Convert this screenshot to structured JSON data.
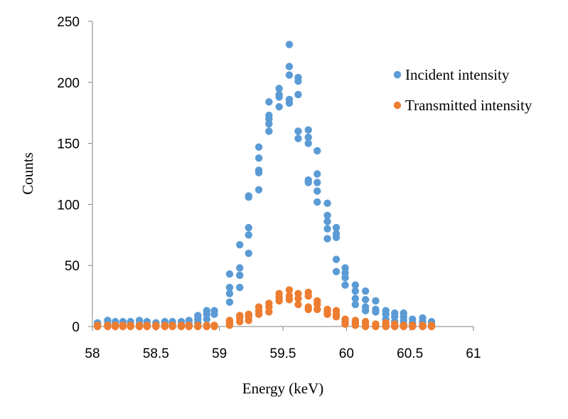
{
  "chart_data": {
    "type": "scatter",
    "xlabel": "Energy (keV)",
    "ylabel": "Counts",
    "xlim": [
      58,
      61
    ],
    "ylim": [
      0,
      250
    ],
    "xticks": [
      "58",
      "58.5",
      "59",
      "59.5",
      "60",
      "60.5",
      "61"
    ],
    "yticks": [
      "0",
      "50",
      "100",
      "150",
      "200",
      "250"
    ],
    "grid": false,
    "legend_position": "right",
    "series": [
      {
        "name": "Incident intensity",
        "color": "#5B9BD5",
        "points": [
          [
            58.04,
            3
          ],
          [
            58.04,
            1
          ],
          [
            58.12,
            5
          ],
          [
            58.12,
            2
          ],
          [
            58.18,
            4
          ],
          [
            58.18,
            1
          ],
          [
            58.24,
            4
          ],
          [
            58.24,
            2
          ],
          [
            58.3,
            4
          ],
          [
            58.3,
            1
          ],
          [
            58.37,
            5
          ],
          [
            58.37,
            2
          ],
          [
            58.43,
            4
          ],
          [
            58.43,
            1
          ],
          [
            58.5,
            3
          ],
          [
            58.5,
            1
          ],
          [
            58.57,
            4
          ],
          [
            58.57,
            2
          ],
          [
            58.63,
            4
          ],
          [
            58.63,
            2
          ],
          [
            58.7,
            4
          ],
          [
            58.7,
            1
          ],
          [
            58.76,
            5
          ],
          [
            58.76,
            2
          ],
          [
            58.83,
            9
          ],
          [
            58.83,
            6
          ],
          [
            58.83,
            3
          ],
          [
            58.9,
            13
          ],
          [
            58.9,
            10
          ],
          [
            58.9,
            6
          ],
          [
            58.96,
            13
          ],
          [
            58.96,
            10
          ],
          [
            59.08,
            43
          ],
          [
            59.08,
            32
          ],
          [
            59.08,
            27
          ],
          [
            59.08,
            20
          ],
          [
            59.16,
            67
          ],
          [
            59.16,
            48
          ],
          [
            59.16,
            42
          ],
          [
            59.16,
            32
          ],
          [
            59.23,
            107
          ],
          [
            59.23,
            106
          ],
          [
            59.23,
            81
          ],
          [
            59.23,
            75
          ],
          [
            59.23,
            60
          ],
          [
            59.31,
            147
          ],
          [
            59.31,
            138
          ],
          [
            59.31,
            128
          ],
          [
            59.31,
            126
          ],
          [
            59.31,
            112
          ],
          [
            59.39,
            184
          ],
          [
            59.39,
            173
          ],
          [
            59.39,
            170
          ],
          [
            59.39,
            166
          ],
          [
            59.39,
            160
          ],
          [
            59.47,
            195
          ],
          [
            59.47,
            190
          ],
          [
            59.47,
            188
          ],
          [
            59.47,
            180
          ],
          [
            59.55,
            231
          ],
          [
            59.55,
            213
          ],
          [
            59.55,
            206
          ],
          [
            59.55,
            186
          ],
          [
            59.55,
            183
          ],
          [
            59.62,
            204
          ],
          [
            59.62,
            201
          ],
          [
            59.62,
            190
          ],
          [
            59.62,
            160
          ],
          [
            59.62,
            154
          ],
          [
            59.7,
            161
          ],
          [
            59.7,
            155
          ],
          [
            59.7,
            150
          ],
          [
            59.7,
            120
          ],
          [
            59.7,
            118
          ],
          [
            59.77,
            144
          ],
          [
            59.77,
            125
          ],
          [
            59.77,
            118
          ],
          [
            59.77,
            111
          ],
          [
            59.77,
            102
          ],
          [
            59.85,
            101
          ],
          [
            59.85,
            91
          ],
          [
            59.85,
            86
          ],
          [
            59.85,
            80
          ],
          [
            59.85,
            72
          ],
          [
            59.92,
            81
          ],
          [
            59.92,
            76
          ],
          [
            59.92,
            73
          ],
          [
            59.92,
            55
          ],
          [
            59.92,
            45
          ],
          [
            59.99,
            48
          ],
          [
            59.99,
            44
          ],
          [
            59.99,
            40
          ],
          [
            59.99,
            34
          ],
          [
            60.07,
            34
          ],
          [
            60.07,
            29
          ],
          [
            60.07,
            23
          ],
          [
            60.07,
            18
          ],
          [
            60.15,
            29
          ],
          [
            60.15,
            22
          ],
          [
            60.15,
            16
          ],
          [
            60.15,
            13
          ],
          [
            60.23,
            21
          ],
          [
            60.23,
            14
          ],
          [
            60.23,
            12
          ],
          [
            60.31,
            13
          ],
          [
            60.31,
            10
          ],
          [
            60.31,
            6
          ],
          [
            60.38,
            11
          ],
          [
            60.38,
            8
          ],
          [
            60.38,
            4
          ],
          [
            60.45,
            11
          ],
          [
            60.45,
            8
          ],
          [
            60.45,
            5
          ],
          [
            60.45,
            2
          ],
          [
            60.52,
            6
          ],
          [
            60.52,
            3
          ],
          [
            60.52,
            1
          ],
          [
            60.6,
            7
          ],
          [
            60.6,
            4
          ],
          [
            60.6,
            2
          ],
          [
            60.67,
            4
          ],
          [
            60.67,
            2
          ],
          [
            60.67,
            1
          ]
        ]
      },
      {
        "name": "Transmitted intensity",
        "color": "#ED7D31",
        "points": [
          [
            58.04,
            0
          ],
          [
            58.04,
            1
          ],
          [
            58.12,
            1
          ],
          [
            58.12,
            0
          ],
          [
            58.18,
            1
          ],
          [
            58.18,
            0
          ],
          [
            58.24,
            1
          ],
          [
            58.24,
            0
          ],
          [
            58.3,
            1
          ],
          [
            58.3,
            0
          ],
          [
            58.37,
            1
          ],
          [
            58.37,
            0
          ],
          [
            58.43,
            0
          ],
          [
            58.43,
            1
          ],
          [
            58.5,
            1
          ],
          [
            58.5,
            0
          ],
          [
            58.57,
            1
          ],
          [
            58.57,
            0
          ],
          [
            58.63,
            1
          ],
          [
            58.63,
            0
          ],
          [
            58.7,
            1
          ],
          [
            58.7,
            0
          ],
          [
            58.76,
            1
          ],
          [
            58.76,
            0
          ],
          [
            58.83,
            1
          ],
          [
            58.83,
            0
          ],
          [
            58.9,
            1
          ],
          [
            58.9,
            0
          ],
          [
            58.96,
            1
          ],
          [
            58.96,
            0
          ],
          [
            59.08,
            5
          ],
          [
            59.08,
            3
          ],
          [
            59.08,
            1
          ],
          [
            59.16,
            9
          ],
          [
            59.16,
            7
          ],
          [
            59.16,
            4
          ],
          [
            59.23,
            10
          ],
          [
            59.23,
            8
          ],
          [
            59.23,
            5
          ],
          [
            59.31,
            16
          ],
          [
            59.31,
            13
          ],
          [
            59.31,
            10
          ],
          [
            59.39,
            19
          ],
          [
            59.39,
            16
          ],
          [
            59.39,
            12
          ],
          [
            59.47,
            27
          ],
          [
            59.47,
            24
          ],
          [
            59.47,
            21
          ],
          [
            59.55,
            30
          ],
          [
            59.55,
            25
          ],
          [
            59.55,
            22
          ],
          [
            59.62,
            27
          ],
          [
            59.62,
            23
          ],
          [
            59.62,
            18
          ],
          [
            59.7,
            28
          ],
          [
            59.7,
            25
          ],
          [
            59.7,
            16
          ],
          [
            59.7,
            14
          ],
          [
            59.77,
            21
          ],
          [
            59.77,
            18
          ],
          [
            59.77,
            14
          ],
          [
            59.85,
            14
          ],
          [
            59.85,
            12
          ],
          [
            59.85,
            10
          ],
          [
            59.92,
            13
          ],
          [
            59.92,
            10
          ],
          [
            59.92,
            8
          ],
          [
            59.99,
            6
          ],
          [
            59.99,
            4
          ],
          [
            59.99,
            2
          ],
          [
            60.07,
            5
          ],
          [
            60.07,
            3
          ],
          [
            60.07,
            1
          ],
          [
            60.15,
            4
          ],
          [
            60.15,
            2
          ],
          [
            60.15,
            0
          ],
          [
            60.23,
            2
          ],
          [
            60.23,
            1
          ],
          [
            60.23,
            0
          ],
          [
            60.31,
            3
          ],
          [
            60.31,
            1
          ],
          [
            60.31,
            0
          ],
          [
            60.38,
            2
          ],
          [
            60.38,
            1
          ],
          [
            60.38,
            0
          ],
          [
            60.45,
            1
          ],
          [
            60.45,
            0
          ],
          [
            60.52,
            1
          ],
          [
            60.52,
            0
          ],
          [
            60.6,
            1
          ],
          [
            60.6,
            0
          ],
          [
            60.67,
            1
          ],
          [
            60.67,
            0
          ]
        ]
      }
    ]
  }
}
